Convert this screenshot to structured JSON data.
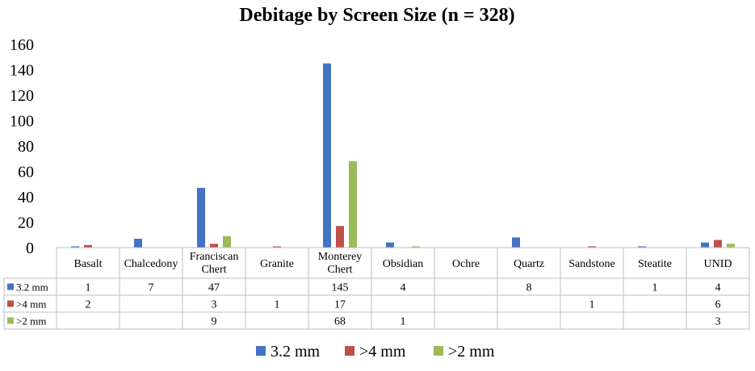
{
  "chart_data": {
    "type": "bar",
    "title": "Debitage by Screen Size (n = 328)",
    "categories": [
      "Basalt",
      "Chalcedony",
      "Franciscan Chert",
      "Granite",
      "Monterey Chert",
      "Obsidian",
      "Ochre",
      "Quartz",
      "Sandstone",
      "Steatite",
      "UNID"
    ],
    "category_lines": [
      [
        "Basalt"
      ],
      [
        "Chalcedony"
      ],
      [
        "Franciscan",
        "Chert"
      ],
      [
        "Granite"
      ],
      [
        "Monterey",
        "Chert"
      ],
      [
        "Obsidian"
      ],
      [
        "Ochre"
      ],
      [
        "Quartz"
      ],
      [
        "Sandstone"
      ],
      [
        "Steatite"
      ],
      [
        "UNID"
      ]
    ],
    "series": [
      {
        "name": "3.2 mm",
        "color": "#4472C4",
        "values": [
          1,
          7,
          47,
          null,
          145,
          4,
          null,
          8,
          null,
          1,
          4
        ]
      },
      {
        "name": ">4 mm",
        "color": "#C0504D",
        "values": [
          2,
          null,
          3,
          1,
          17,
          null,
          null,
          null,
          1,
          null,
          6
        ]
      },
      {
        "name": ">2 mm",
        "color": "#9BBB59",
        "values": [
          null,
          null,
          9,
          null,
          68,
          1,
          null,
          null,
          null,
          null,
          3
        ]
      }
    ],
    "ylim": [
      0,
      160
    ],
    "yticks": [
      0,
      20,
      40,
      60,
      80,
      100,
      120,
      140,
      160
    ],
    "xlabel": "",
    "ylabel": "",
    "grid": false,
    "data_table": true,
    "legend_position": "bottom"
  }
}
